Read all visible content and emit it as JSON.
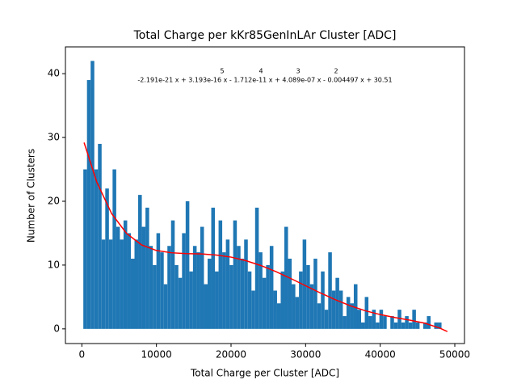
{
  "chart_data": {
    "type": "histogram",
    "title": "Total Charge per kKr85GenInLAr Cluster [ADC]",
    "xlabel": "Total Charge per Cluster [ADC]",
    "ylabel": "Number of Clusters",
    "annotation": "-2.191e-21 x + 3.193e-16 x - 1.712e-11 x + 4.089e-07 x - 0.004497 x + 30.51",
    "annotation_exponents": [
      "5",
      "4",
      "3",
      "2"
    ],
    "color": "#1f77b4",
    "bins": [
      200,
      690,
      1180,
      1670,
      2160,
      2650,
      3140,
      3630,
      4120,
      4610,
      5100,
      5590,
      6080,
      6570,
      7060,
      7550,
      8040,
      8530,
      9020,
      9510,
      10000,
      10490,
      10980,
      11470,
      11960,
      12450,
      12940,
      13430,
      13920,
      14410,
      14900,
      15390,
      15880,
      16370,
      16860,
      17350,
      17840,
      18330,
      18820,
      19310,
      19800,
      20290,
      20780,
      21270,
      21760,
      22250,
      22740,
      23230,
      23720,
      24210,
      24700,
      25190,
      25680,
      26170,
      26660,
      27150,
      27640,
      28130,
      28620,
      29110,
      29600,
      30090,
      30580,
      31070,
      31560,
      32050,
      32540,
      33030,
      33520,
      34010,
      34500,
      34990,
      35480,
      35970,
      36460,
      36950,
      37440,
      37930,
      38420,
      38910,
      39400,
      39890,
      40380,
      40870,
      41360,
      41850,
      42340,
      42830,
      43320,
      43810,
      44300,
      44790,
      45280,
      45770,
      46260,
      46750,
      47240,
      47730,
      48220,
      48710,
      49200
    ],
    "counts": [
      25,
      39,
      42,
      25,
      29,
      14,
      22,
      14,
      25,
      16,
      14,
      17,
      15,
      11,
      14,
      21,
      16,
      19,
      13,
      10,
      15,
      12,
      7,
      13,
      17,
      10,
      8,
      15,
      20,
      9,
      13,
      12,
      16,
      7,
      11,
      19,
      9,
      17,
      12,
      14,
      10,
      17,
      13,
      11,
      14,
      9,
      6,
      19,
      12,
      8,
      10,
      13,
      6,
      4,
      9,
      16,
      11,
      7,
      5,
      9,
      14,
      10,
      7,
      11,
      4,
      9,
      3,
      12,
      6,
      8,
      6,
      2,
      5,
      4,
      7,
      3,
      1,
      5,
      2,
      3,
      1,
      3,
      2,
      0,
      2,
      1,
      3,
      1,
      2,
      1,
      3,
      1,
      0,
      1,
      2,
      0,
      1,
      1,
      0,
      0
    ],
    "fit": {
      "color": "#ff0000",
      "x": [
        300,
        2000,
        4000,
        6000,
        8000,
        10000,
        12000,
        14000,
        16000,
        18000,
        20000,
        22000,
        24000,
        26000,
        28000,
        30000,
        32000,
        34000,
        36000,
        38000,
        40000,
        42000,
        44000,
        46000,
        48000,
        49000
      ],
      "values": [
        29.2,
        23.02,
        18.05,
        14.95,
        13.17,
        12.28,
        11.93,
        11.8,
        11.75,
        11.58,
        11.25,
        10.69,
        9.93,
        8.99,
        7.9,
        6.76,
        5.62,
        4.56,
        3.62,
        2.84,
        2.24,
        1.77,
        1.36,
        0.88,
        0.12,
        -0.42
      ]
    },
    "xlim": [
      -2200,
      51300
    ],
    "ylim": [
      -2.3,
      44.2
    ],
    "xticks": [
      0,
      10000,
      20000,
      30000,
      40000,
      50000
    ],
    "yticks": [
      0,
      10,
      20,
      30,
      40
    ]
  }
}
